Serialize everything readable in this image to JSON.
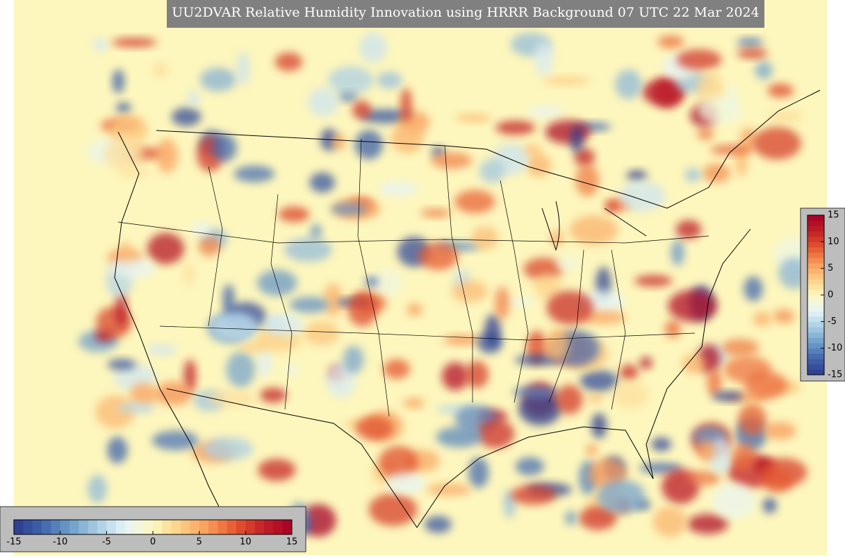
{
  "title": "UU2DVAR Relative Humidity Innovation using HRRR Background 07 UTC 22 Mar 2024",
  "colorbar": {
    "range": [
      -15,
      15
    ],
    "ticks": [
      -15,
      -10,
      -5,
      0,
      5,
      10,
      15
    ],
    "colors": [
      "#2c3a8c",
      "#3f64ab",
      "#6d9cc9",
      "#a9cde3",
      "#e6f4f8",
      "#fdf8c0",
      "#fdce84",
      "#f89a5a",
      "#e4552f",
      "#c11f26",
      "#a50026"
    ]
  }
}
